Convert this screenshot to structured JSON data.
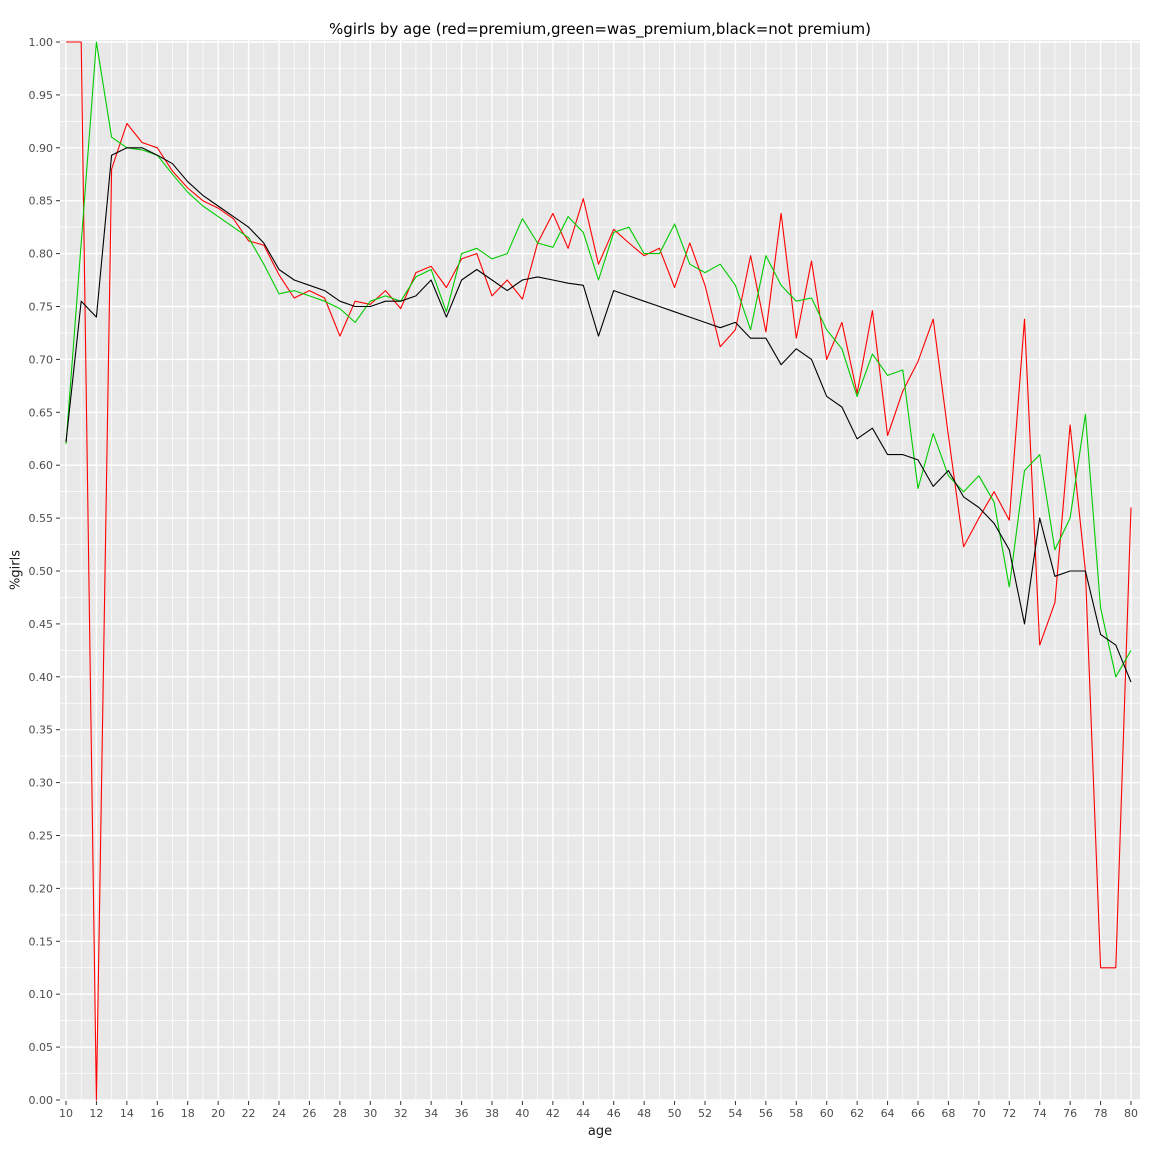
{
  "chart_data": {
    "type": "line",
    "title": "%girls by age (red=premium,green=was_premium,black=not premium)",
    "xlabel": "age",
    "ylabel": "%girls",
    "xlim": [
      10,
      80
    ],
    "ylim": [
      0,
      1
    ],
    "grid": true,
    "legend": "none (encoded in title)",
    "panel_bg": "#e8e8e8",
    "grid_color": "#ffffff",
    "tick_color": "#333333",
    "tick_label_color": "#4d4d4d",
    "x_ticks": [
      10,
      12,
      14,
      16,
      18,
      20,
      22,
      24,
      26,
      28,
      30,
      32,
      34,
      36,
      38,
      40,
      42,
      44,
      46,
      48,
      50,
      52,
      54,
      56,
      58,
      60,
      62,
      64,
      66,
      68,
      70,
      72,
      74,
      76,
      78,
      80
    ],
    "y_ticks": [
      0,
      0.05,
      0.1,
      0.15,
      0.2,
      0.25,
      0.3,
      0.35,
      0.4,
      0.45,
      0.5,
      0.55,
      0.6,
      0.65,
      0.7,
      0.75,
      0.8,
      0.85,
      0.9,
      0.95,
      1.0
    ],
    "y_tick_labels": [
      "0.00",
      "0.05",
      "0.10",
      "0.15",
      "0.20",
      "0.25",
      "0.30",
      "0.35",
      "0.40",
      "0.45",
      "0.50",
      "0.55",
      "0.60",
      "0.65",
      "0.70",
      "0.75",
      "0.80",
      "0.85",
      "0.90",
      "0.95",
      "1.00"
    ],
    "x": [
      10,
      11,
      12,
      13,
      14,
      15,
      16,
      17,
      18,
      19,
      20,
      21,
      22,
      23,
      24,
      25,
      26,
      27,
      28,
      29,
      30,
      31,
      32,
      33,
      34,
      35,
      36,
      37,
      38,
      39,
      40,
      41,
      42,
      43,
      44,
      45,
      46,
      47,
      48,
      49,
      50,
      51,
      52,
      53,
      54,
      55,
      56,
      57,
      58,
      59,
      60,
      61,
      62,
      63,
      64,
      65,
      66,
      67,
      68,
      69,
      70,
      71,
      72,
      73,
      74,
      75,
      76,
      77,
      78,
      79,
      80
    ],
    "series": [
      {
        "name": "premium",
        "color": "#ff0000",
        "values": [
          1.0,
          1.0,
          0.0,
          0.88,
          0.923,
          0.905,
          0.9,
          0.878,
          0.862,
          0.85,
          0.843,
          0.833,
          0.812,
          0.808,
          0.78,
          0.758,
          0.765,
          0.758,
          0.722,
          0.755,
          0.752,
          0.765,
          0.748,
          0.782,
          0.788,
          0.768,
          0.795,
          0.8,
          0.76,
          0.775,
          0.757,
          0.81,
          0.838,
          0.805,
          0.852,
          0.79,
          0.823,
          0.81,
          0.798,
          0.805,
          0.768,
          0.81,
          0.77,
          0.712,
          0.728,
          0.798,
          0.726,
          0.838,
          0.72,
          0.793,
          0.7,
          0.735,
          0.668,
          0.746,
          0.628,
          0.67,
          0.698,
          0.738,
          0.628,
          0.523,
          0.55,
          0.575,
          0.548,
          0.738,
          0.43,
          0.47,
          0.638,
          0.5,
          0.125,
          0.125,
          0.56
        ]
      },
      {
        "name": "was_premium",
        "color": "#00cc00",
        "values": [
          0.62,
          0.81,
          1.0,
          0.91,
          0.9,
          0.898,
          0.893,
          0.875,
          0.858,
          0.845,
          0.835,
          0.825,
          0.815,
          0.79,
          0.762,
          0.765,
          0.76,
          0.755,
          0.748,
          0.735,
          0.755,
          0.76,
          0.755,
          0.778,
          0.785,
          0.745,
          0.8,
          0.805,
          0.795,
          0.8,
          0.833,
          0.81,
          0.806,
          0.835,
          0.82,
          0.775,
          0.82,
          0.825,
          0.8,
          0.8,
          0.828,
          0.79,
          0.782,
          0.79,
          0.77,
          0.728,
          0.798,
          0.77,
          0.755,
          0.758,
          0.728,
          0.71,
          0.665,
          0.705,
          0.685,
          0.69,
          0.578,
          0.63,
          0.59,
          0.575,
          0.59,
          0.565,
          0.485,
          0.595,
          0.61,
          0.52,
          0.55,
          0.648,
          0.465,
          0.4,
          0.425
        ]
      },
      {
        "name": "not_premium",
        "color": "#000000",
        "values": [
          0.622,
          0.755,
          0.74,
          0.893,
          0.9,
          0.9,
          0.893,
          0.885,
          0.868,
          0.855,
          0.845,
          0.835,
          0.825,
          0.81,
          0.785,
          0.775,
          0.77,
          0.765,
          0.755,
          0.75,
          0.75,
          0.755,
          0.755,
          0.76,
          0.775,
          0.74,
          0.775,
          0.785,
          0.775,
          0.765,
          0.775,
          0.778,
          0.775,
          0.772,
          0.77,
          0.722,
          0.765,
          0.76,
          0.755,
          0.75,
          0.745,
          0.74,
          0.735,
          0.73,
          0.735,
          0.72,
          0.72,
          0.695,
          0.71,
          0.7,
          0.665,
          0.655,
          0.625,
          0.635,
          0.61,
          0.61,
          0.605,
          0.58,
          0.595,
          0.57,
          0.56,
          0.545,
          0.52,
          0.45,
          0.55,
          0.495,
          0.5,
          0.5,
          0.44,
          0.43,
          0.395
        ]
      }
    ]
  }
}
